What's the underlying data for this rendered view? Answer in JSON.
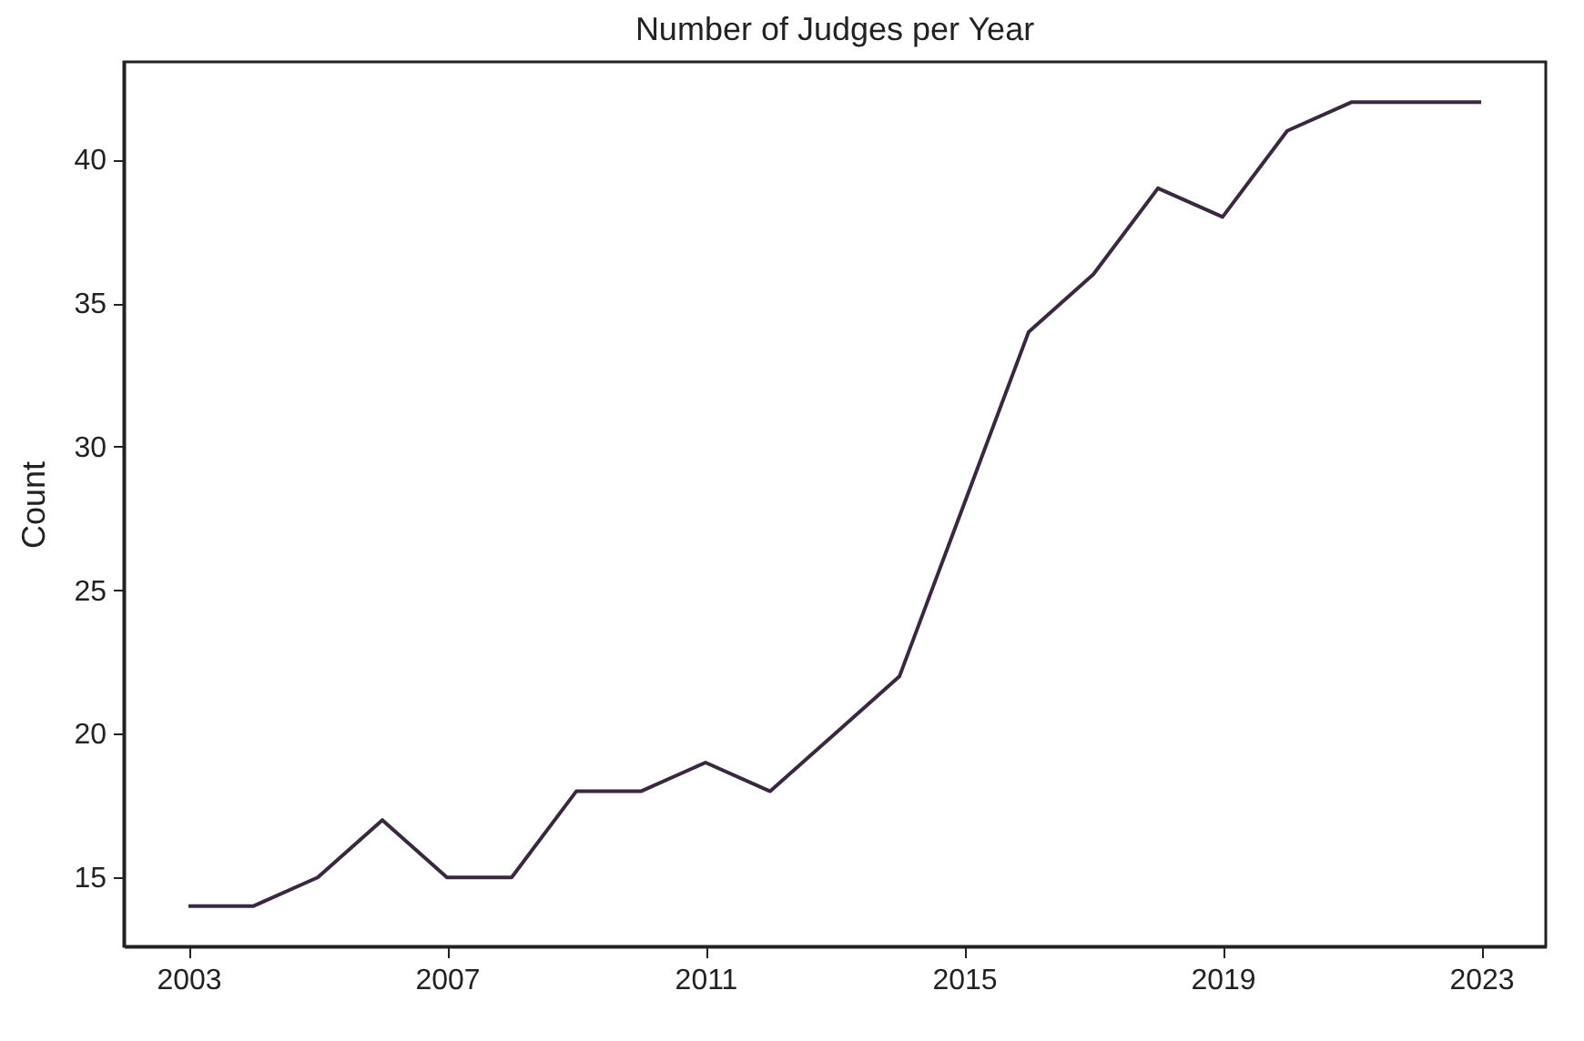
{
  "chart_data": {
    "type": "line",
    "title": "Number of Judges per Year",
    "ylabel": "Count",
    "x": [
      2003,
      2004,
      2005,
      2006,
      2007,
      2008,
      2009,
      2010,
      2011,
      2012,
      2013,
      2014,
      2015,
      2016,
      2017,
      2018,
      2019,
      2020,
      2021,
      2022,
      2023
    ],
    "series": [
      {
        "color": "#3a2740",
        "values": [
          14,
          14,
          15,
          17,
          15,
          15,
          18,
          18,
          19,
          18,
          20,
          22,
          28,
          34,
          36,
          39,
          38,
          41,
          42,
          42,
          42
        ]
      }
    ],
    "xlim": [
      2002,
      2024
    ],
    "xticks": [
      2003,
      2007,
      2011,
      2015,
      2019,
      2023
    ],
    "ylim": [
      12.6,
      43.4
    ],
    "yticks": [
      15,
      20,
      25,
      30,
      35,
      40
    ],
    "grid": false,
    "marker": "none",
    "line_style": "solid"
  }
}
